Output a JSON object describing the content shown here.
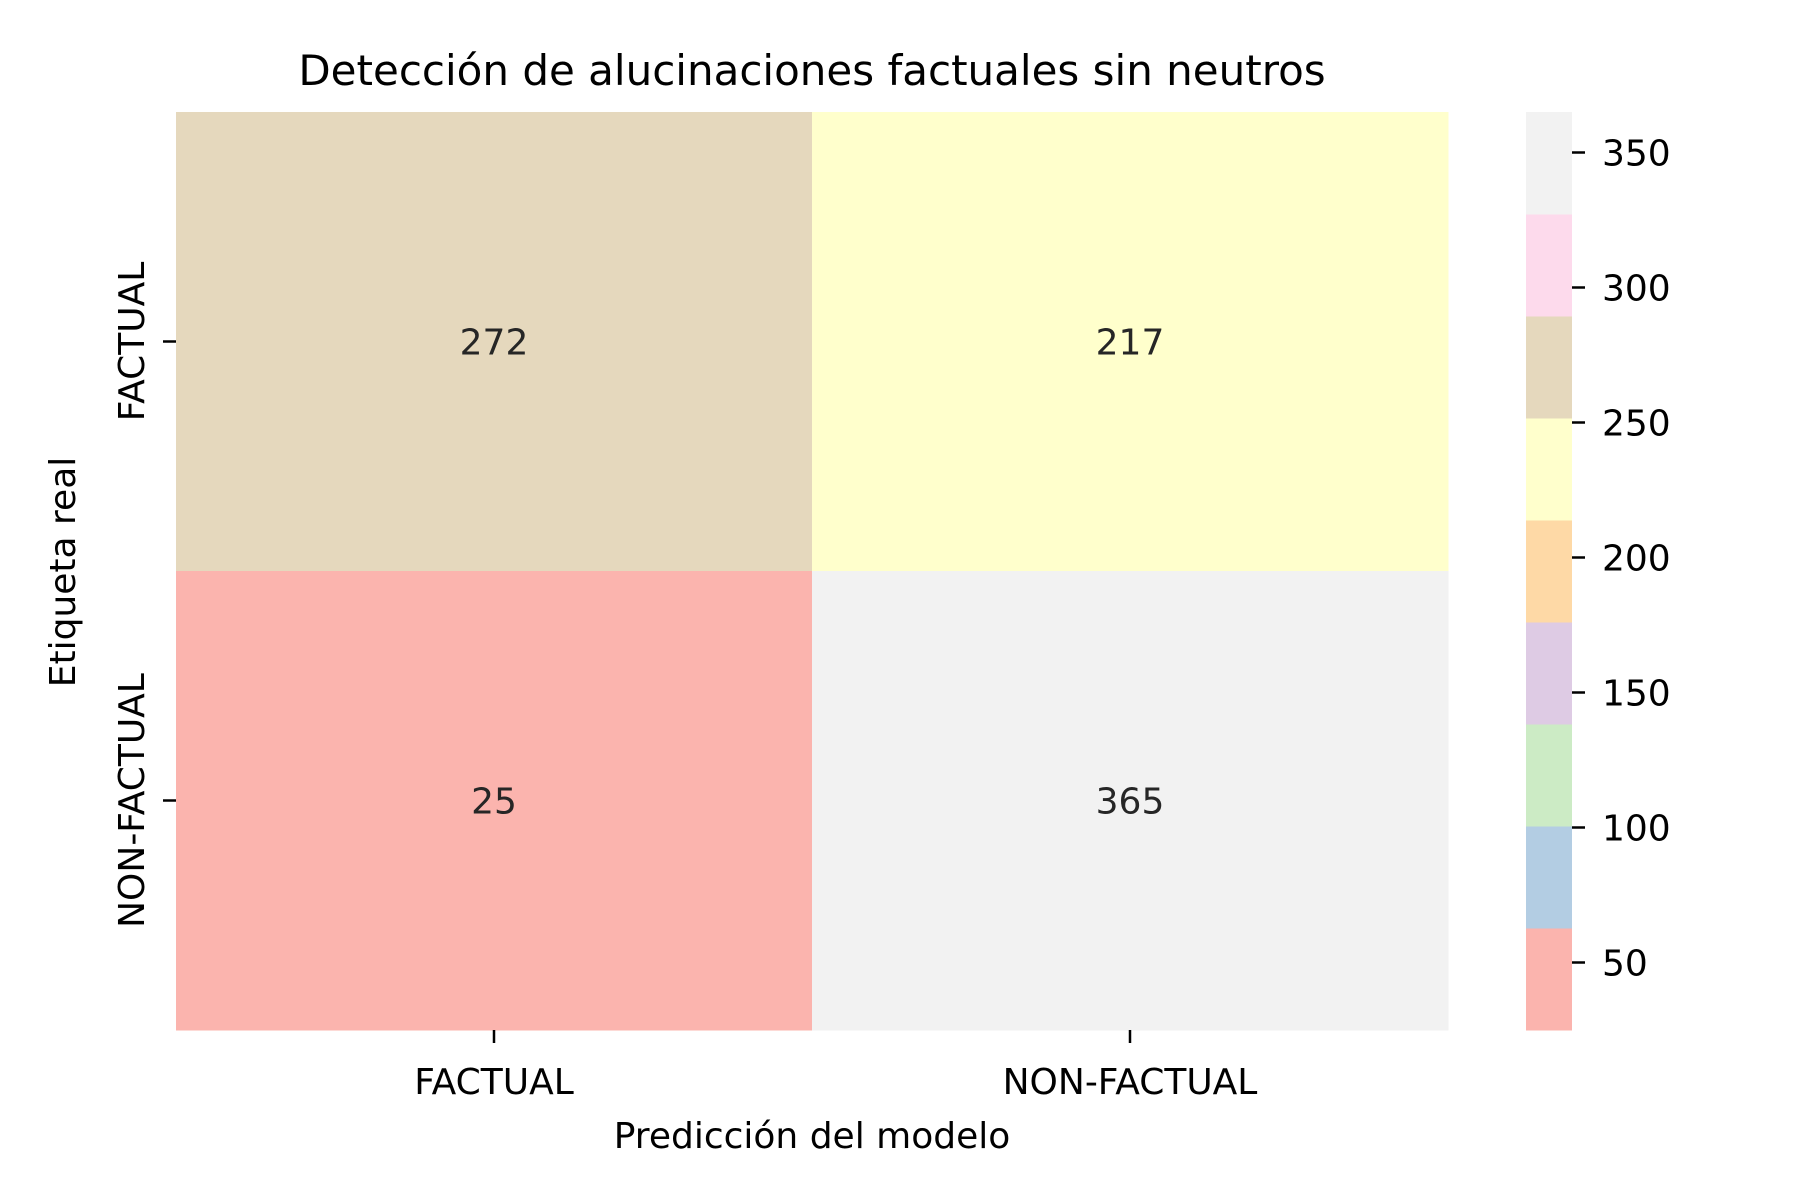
{
  "chart_data": {
    "type": "heatmap",
    "title": "Detección de alucinaciones factuales sin neutros",
    "xlabel": "Predicción del modelo",
    "ylabel": "Etiqueta real",
    "x_categories": [
      "FACTUAL",
      "NON-FACTUAL"
    ],
    "y_categories": [
      "FACTUAL",
      "NON-FACTUAL"
    ],
    "values": [
      [
        272,
        217
      ],
      [
        25,
        365
      ]
    ],
    "colorbar": {
      "range": [
        25,
        365
      ],
      "ticks": [
        50,
        100,
        150,
        200,
        250,
        300,
        350
      ],
      "colors": [
        "#fbb4ae",
        "#b3cde3",
        "#ccebc5",
        "#decbe4",
        "#fed9a6",
        "#ffffcc",
        "#e5d8bd",
        "#fddaec",
        "#f2f2f2"
      ]
    }
  }
}
